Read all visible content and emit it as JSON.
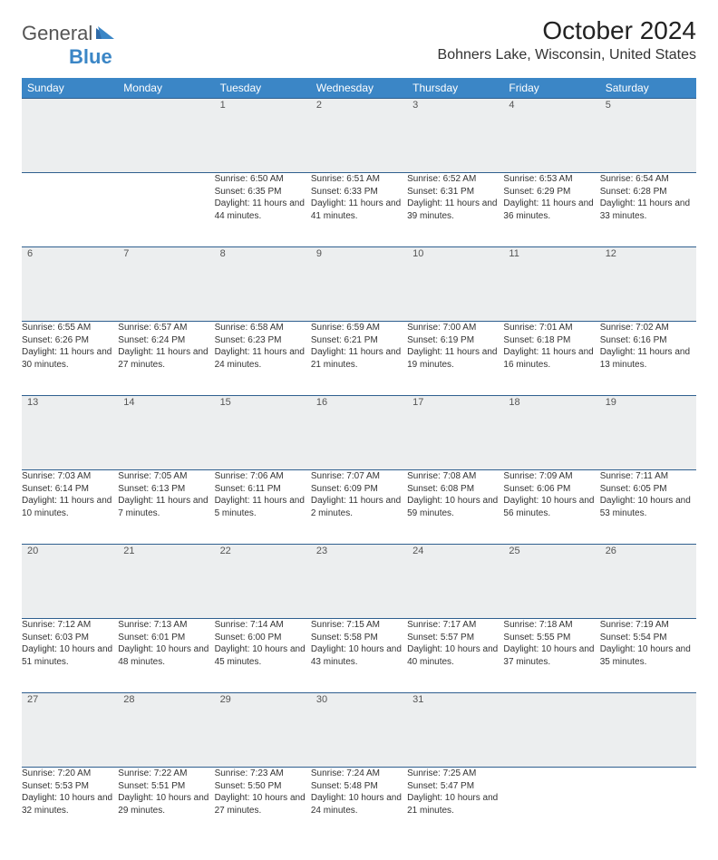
{
  "logo": {
    "text_gray": "General",
    "text_blue": "Blue",
    "mark_color": "#3b86c6"
  },
  "header": {
    "month_title": "October 2024",
    "location": "Bohners Lake, Wisconsin, United States"
  },
  "colors": {
    "header_bg": "#3b86c6",
    "header_text": "#ffffff",
    "daynum_bg": "#eceeef",
    "row_border": "#2f5f8f",
    "body_text": "#333333"
  },
  "day_headers": [
    "Sunday",
    "Monday",
    "Tuesday",
    "Wednesday",
    "Thursday",
    "Friday",
    "Saturday"
  ],
  "weeks": [
    [
      {
        "day": "",
        "sunrise": "",
        "sunset": "",
        "daylight": ""
      },
      {
        "day": "",
        "sunrise": "",
        "sunset": "",
        "daylight": ""
      },
      {
        "day": "1",
        "sunrise": "Sunrise: 6:50 AM",
        "sunset": "Sunset: 6:35 PM",
        "daylight": "Daylight: 11 hours and 44 minutes."
      },
      {
        "day": "2",
        "sunrise": "Sunrise: 6:51 AM",
        "sunset": "Sunset: 6:33 PM",
        "daylight": "Daylight: 11 hours and 41 minutes."
      },
      {
        "day": "3",
        "sunrise": "Sunrise: 6:52 AM",
        "sunset": "Sunset: 6:31 PM",
        "daylight": "Daylight: 11 hours and 39 minutes."
      },
      {
        "day": "4",
        "sunrise": "Sunrise: 6:53 AM",
        "sunset": "Sunset: 6:29 PM",
        "daylight": "Daylight: 11 hours and 36 minutes."
      },
      {
        "day": "5",
        "sunrise": "Sunrise: 6:54 AM",
        "sunset": "Sunset: 6:28 PM",
        "daylight": "Daylight: 11 hours and 33 minutes."
      }
    ],
    [
      {
        "day": "6",
        "sunrise": "Sunrise: 6:55 AM",
        "sunset": "Sunset: 6:26 PM",
        "daylight": "Daylight: 11 hours and 30 minutes."
      },
      {
        "day": "7",
        "sunrise": "Sunrise: 6:57 AM",
        "sunset": "Sunset: 6:24 PM",
        "daylight": "Daylight: 11 hours and 27 minutes."
      },
      {
        "day": "8",
        "sunrise": "Sunrise: 6:58 AM",
        "sunset": "Sunset: 6:23 PM",
        "daylight": "Daylight: 11 hours and 24 minutes."
      },
      {
        "day": "9",
        "sunrise": "Sunrise: 6:59 AM",
        "sunset": "Sunset: 6:21 PM",
        "daylight": "Daylight: 11 hours and 21 minutes."
      },
      {
        "day": "10",
        "sunrise": "Sunrise: 7:00 AM",
        "sunset": "Sunset: 6:19 PM",
        "daylight": "Daylight: 11 hours and 19 minutes."
      },
      {
        "day": "11",
        "sunrise": "Sunrise: 7:01 AM",
        "sunset": "Sunset: 6:18 PM",
        "daylight": "Daylight: 11 hours and 16 minutes."
      },
      {
        "day": "12",
        "sunrise": "Sunrise: 7:02 AM",
        "sunset": "Sunset: 6:16 PM",
        "daylight": "Daylight: 11 hours and 13 minutes."
      }
    ],
    [
      {
        "day": "13",
        "sunrise": "Sunrise: 7:03 AM",
        "sunset": "Sunset: 6:14 PM",
        "daylight": "Daylight: 11 hours and 10 minutes."
      },
      {
        "day": "14",
        "sunrise": "Sunrise: 7:05 AM",
        "sunset": "Sunset: 6:13 PM",
        "daylight": "Daylight: 11 hours and 7 minutes."
      },
      {
        "day": "15",
        "sunrise": "Sunrise: 7:06 AM",
        "sunset": "Sunset: 6:11 PM",
        "daylight": "Daylight: 11 hours and 5 minutes."
      },
      {
        "day": "16",
        "sunrise": "Sunrise: 7:07 AM",
        "sunset": "Sunset: 6:09 PM",
        "daylight": "Daylight: 11 hours and 2 minutes."
      },
      {
        "day": "17",
        "sunrise": "Sunrise: 7:08 AM",
        "sunset": "Sunset: 6:08 PM",
        "daylight": "Daylight: 10 hours and 59 minutes."
      },
      {
        "day": "18",
        "sunrise": "Sunrise: 7:09 AM",
        "sunset": "Sunset: 6:06 PM",
        "daylight": "Daylight: 10 hours and 56 minutes."
      },
      {
        "day": "19",
        "sunrise": "Sunrise: 7:11 AM",
        "sunset": "Sunset: 6:05 PM",
        "daylight": "Daylight: 10 hours and 53 minutes."
      }
    ],
    [
      {
        "day": "20",
        "sunrise": "Sunrise: 7:12 AM",
        "sunset": "Sunset: 6:03 PM",
        "daylight": "Daylight: 10 hours and 51 minutes."
      },
      {
        "day": "21",
        "sunrise": "Sunrise: 7:13 AM",
        "sunset": "Sunset: 6:01 PM",
        "daylight": "Daylight: 10 hours and 48 minutes."
      },
      {
        "day": "22",
        "sunrise": "Sunrise: 7:14 AM",
        "sunset": "Sunset: 6:00 PM",
        "daylight": "Daylight: 10 hours and 45 minutes."
      },
      {
        "day": "23",
        "sunrise": "Sunrise: 7:15 AM",
        "sunset": "Sunset: 5:58 PM",
        "daylight": "Daylight: 10 hours and 43 minutes."
      },
      {
        "day": "24",
        "sunrise": "Sunrise: 7:17 AM",
        "sunset": "Sunset: 5:57 PM",
        "daylight": "Daylight: 10 hours and 40 minutes."
      },
      {
        "day": "25",
        "sunrise": "Sunrise: 7:18 AM",
        "sunset": "Sunset: 5:55 PM",
        "daylight": "Daylight: 10 hours and 37 minutes."
      },
      {
        "day": "26",
        "sunrise": "Sunrise: 7:19 AM",
        "sunset": "Sunset: 5:54 PM",
        "daylight": "Daylight: 10 hours and 35 minutes."
      }
    ],
    [
      {
        "day": "27",
        "sunrise": "Sunrise: 7:20 AM",
        "sunset": "Sunset: 5:53 PM",
        "daylight": "Daylight: 10 hours and 32 minutes."
      },
      {
        "day": "28",
        "sunrise": "Sunrise: 7:22 AM",
        "sunset": "Sunset: 5:51 PM",
        "daylight": "Daylight: 10 hours and 29 minutes."
      },
      {
        "day": "29",
        "sunrise": "Sunrise: 7:23 AM",
        "sunset": "Sunset: 5:50 PM",
        "daylight": "Daylight: 10 hours and 27 minutes."
      },
      {
        "day": "30",
        "sunrise": "Sunrise: 7:24 AM",
        "sunset": "Sunset: 5:48 PM",
        "daylight": "Daylight: 10 hours and 24 minutes."
      },
      {
        "day": "31",
        "sunrise": "Sunrise: 7:25 AM",
        "sunset": "Sunset: 5:47 PM",
        "daylight": "Daylight: 10 hours and 21 minutes."
      },
      {
        "day": "",
        "sunrise": "",
        "sunset": "",
        "daylight": ""
      },
      {
        "day": "",
        "sunrise": "",
        "sunset": "",
        "daylight": ""
      }
    ]
  ]
}
